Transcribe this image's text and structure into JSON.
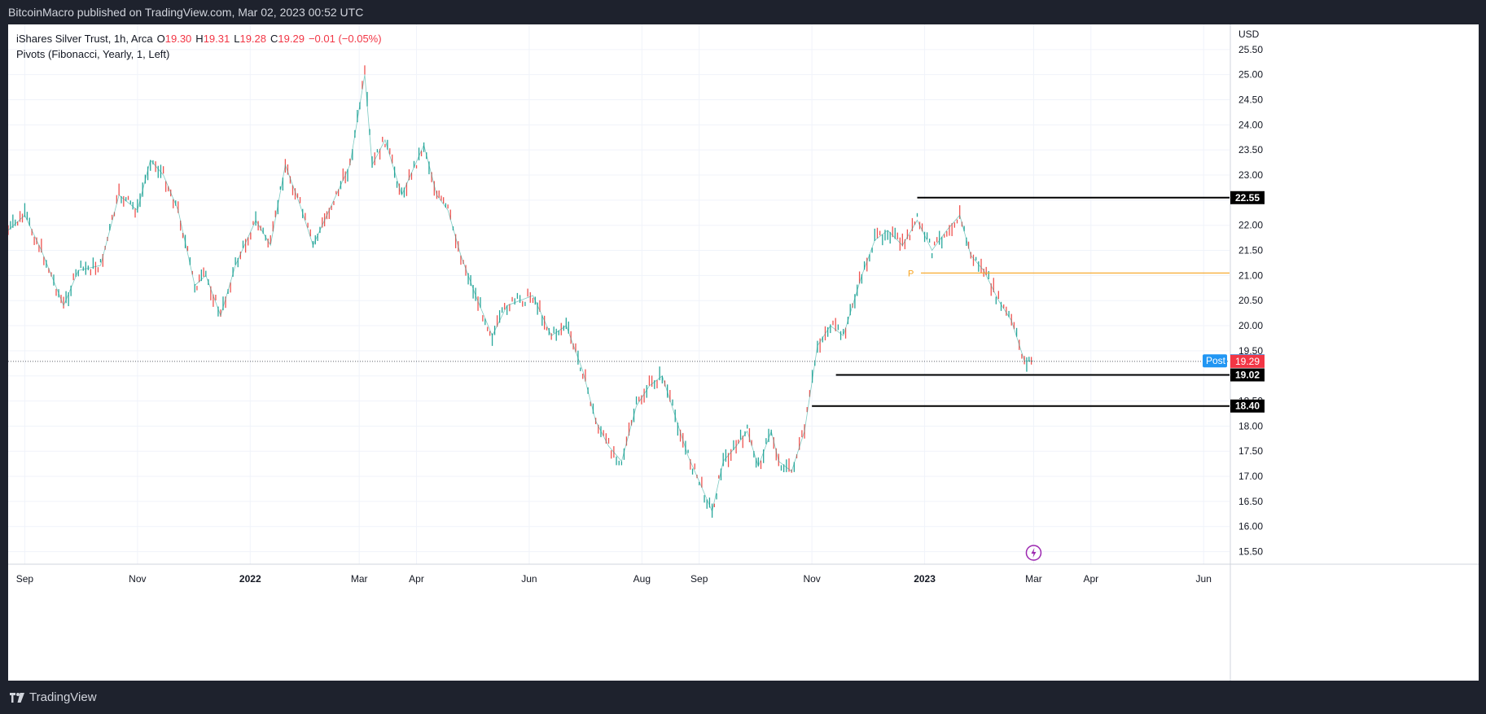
{
  "header": {
    "publisher_line": "BitcoinMacro published on TradingView.com, Mar 02, 2023 00:52 UTC"
  },
  "legend": {
    "symbol": "iShares Silver Trust, 1h, Arca",
    "o_label": "O",
    "o_value": "19.30",
    "h_label": "H",
    "h_value": "19.31",
    "l_label": "L",
    "l_value": "19.28",
    "c_label": "C",
    "c_value": "19.29",
    "change": "−0.01 (−0.05%)",
    "indicator": "Pivots (Fibonacci, Yearly, 1, Left)"
  },
  "footer": {
    "brand": "TradingView"
  },
  "colors": {
    "up": "#26a69a",
    "down": "#ef5350",
    "pivot": "#f7a21b",
    "post": "#2196f3",
    "last": "#f23645",
    "level": "#000000"
  },
  "chart_data": {
    "type": "line",
    "title": "iShares Silver Trust, 1h, Arca",
    "currency": "USD",
    "x_ticks": [
      "Sep",
      "Nov",
      "2022",
      "Mar",
      "Apr",
      "Jun",
      "Aug",
      "Sep",
      "Nov",
      "2023",
      "Mar",
      "Apr",
      "Jun"
    ],
    "y_ticks": [
      "15.50",
      "16.00",
      "16.50",
      "17.00",
      "17.50",
      "18.00",
      "18.50",
      "19.00",
      "19.50",
      "20.00",
      "20.50",
      "21.00",
      "21.50",
      "22.00",
      "22.50",
      "23.00",
      "23.50",
      "24.00",
      "24.50",
      "25.00",
      "25.50"
    ],
    "ylim": [
      15.25,
      26.0
    ],
    "x_range": [
      "2021-08-23",
      "2023-06-15"
    ],
    "series": [
      {
        "x": [
          "2021-08-23",
          "2021-09-01",
          "2021-09-10",
          "2021-09-22",
          "2021-09-30",
          "2021-10-12",
          "2021-10-22",
          "2021-11-01",
          "2021-11-08",
          "2021-11-15",
          "2021-11-23",
          "2021-12-02",
          "2021-12-08",
          "2021-12-16",
          "2021-12-24",
          "2022-01-04",
          "2022-01-12",
          "2022-01-20",
          "2022-01-28",
          "2022-02-04",
          "2022-02-14",
          "2022-02-24",
          "2022-03-04",
          "2022-03-08",
          "2022-03-15",
          "2022-03-24",
          "2022-04-05",
          "2022-04-12",
          "2022-04-18",
          "2022-04-25",
          "2022-05-03",
          "2022-05-12",
          "2022-05-20",
          "2022-05-27",
          "2022-06-03",
          "2022-06-13",
          "2022-06-21",
          "2022-06-30",
          "2022-07-07",
          "2022-07-14",
          "2022-07-21",
          "2022-07-29",
          "2022-08-05",
          "2022-08-12",
          "2022-08-19",
          "2022-08-26",
          "2022-09-01",
          "2022-09-08",
          "2022-09-14",
          "2022-09-21",
          "2022-09-27",
          "2022-10-03",
          "2022-10-10",
          "2022-10-14",
          "2022-10-21",
          "2022-10-28",
          "2022-11-04",
          "2022-11-11",
          "2022-11-18",
          "2022-11-28",
          "2022-12-05",
          "2022-12-12",
          "2022-12-20",
          "2022-12-28",
          "2023-01-05",
          "2023-01-13",
          "2023-01-20",
          "2023-01-26",
          "2023-02-02",
          "2023-02-10",
          "2023-02-17",
          "2023-02-24",
          "2023-03-01"
        ],
        "y": [
          21.9,
          22.2,
          21.5,
          20.4,
          21.1,
          21.2,
          22.6,
          22.3,
          23.3,
          23.0,
          22.3,
          20.8,
          21.0,
          20.2,
          21.2,
          22.1,
          21.6,
          23.2,
          22.4,
          21.6,
          22.4,
          23.2,
          25.0,
          23.2,
          23.7,
          22.6,
          23.6,
          22.6,
          22.3,
          21.4,
          20.6,
          19.8,
          20.4,
          20.5,
          20.6,
          19.8,
          20.0,
          19.1,
          18.1,
          17.6,
          17.3,
          18.4,
          18.8,
          19.0,
          18.2,
          17.4,
          16.9,
          16.3,
          17.3,
          17.6,
          17.9,
          17.2,
          17.9,
          17.3,
          17.1,
          17.9,
          19.6,
          20.0,
          19.8,
          21.0,
          21.7,
          21.9,
          21.6,
          22.1,
          21.5,
          21.9,
          22.2,
          21.4,
          21.1,
          20.5,
          20.1,
          19.3,
          19.3
        ]
      }
    ],
    "levels": [
      {
        "label": "22.55",
        "value": 22.55,
        "from": "2022-12-28"
      },
      {
        "label": "19.02",
        "value": 19.02,
        "from": "2022-11-14"
      },
      {
        "label": "18.40",
        "value": 18.4,
        "from": "2022-11-01"
      }
    ],
    "pivot": {
      "label": "P",
      "value": 21.05
    },
    "post_price": {
      "label": "Post",
      "value": "19.30"
    },
    "last_price": {
      "value": "19.29"
    },
    "grid": true
  }
}
